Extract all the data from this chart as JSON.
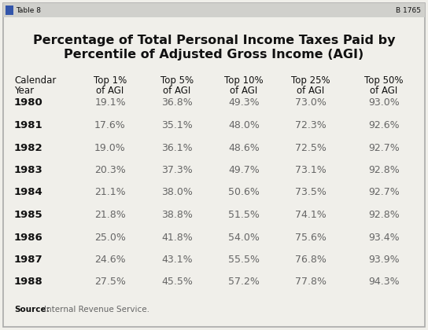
{
  "title_line1": "Percentage of Total Personal Income Taxes Paid by",
  "title_line2": "Percentile of Adjusted Gross Income (AGI)",
  "header_row": [
    "Calendar\nYear",
    "Top 1%\nof AGI",
    "Top 5%\nof AGI",
    "Top 10%\nof AGI",
    "Top 25%\nof AGI",
    "Top 50%\nof AGI"
  ],
  "years": [
    "1980",
    "1981",
    "1982",
    "1983",
    "1984",
    "1985",
    "1986",
    "1987",
    "1988"
  ],
  "data": [
    [
      "19.1%",
      "36.8%",
      "49.3%",
      "73.0%",
      "93.0%"
    ],
    [
      "17.6%",
      "35.1%",
      "48.0%",
      "72.3%",
      "92.6%"
    ],
    [
      "19.0%",
      "36.1%",
      "48.6%",
      "72.5%",
      "92.7%"
    ],
    [
      "20.3%",
      "37.3%",
      "49.7%",
      "73.1%",
      "92.8%"
    ],
    [
      "21.1%",
      "38.0%",
      "50.6%",
      "73.5%",
      "92.7%"
    ],
    [
      "21.8%",
      "38.8%",
      "51.5%",
      "74.1%",
      "92.8%"
    ],
    [
      "25.0%",
      "41.8%",
      "54.0%",
      "75.6%",
      "93.4%"
    ],
    [
      "24.6%",
      "43.1%",
      "55.5%",
      "76.8%",
      "93.9%"
    ],
    [
      "27.5%",
      "45.5%",
      "57.2%",
      "77.8%",
      "94.3%"
    ]
  ],
  "source_label": "Source:",
  "source_text": "Internal Revenue Service.",
  "table_label": "Table 8",
  "page_label": "B 1765",
  "bg_color": "#f0efea",
  "border_color": "#aaaaaa",
  "title_color": "#111111",
  "header_color": "#111111",
  "year_color": "#111111",
  "data_color": "#666666",
  "source_bold_color": "#111111",
  "source_color": "#666666",
  "titlebar_bg": "#d0d0cc",
  "titlebar_text_color": "#111111"
}
